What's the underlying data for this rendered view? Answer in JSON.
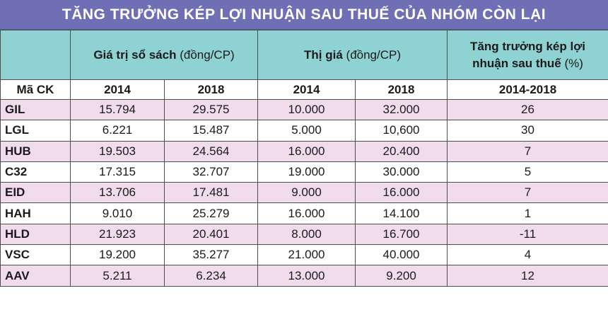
{
  "title": "TĂNG TRƯỞNG KÉP LỢI NHUẬN SAU THUẾ CỦA NHÓM CÒN LẠI",
  "header": {
    "book_value": {
      "label": "Giá trị sổ sách",
      "unit": "(đồng/CP)"
    },
    "market_price": {
      "label": "Thị giá",
      "unit": "(đồng/CP)"
    },
    "cagr": {
      "line1": "Tăng trưởng kép lợi",
      "line2": "nhuận sau thuế",
      "unit": "(%)"
    }
  },
  "subheader": {
    "code": "Mã CK",
    "bv_2014": "2014",
    "bv_2018": "2018",
    "mp_2014": "2014",
    "mp_2018": "2018",
    "period": "2014-2018"
  },
  "chart_data": {
    "type": "table",
    "title": "TĂNG TRƯỞNG KÉP LỢI NHUẬN SAU THUẾ CỦA NHÓM CÒN LẠI",
    "columns": [
      "Mã CK",
      "Giá trị sổ sách 2014",
      "Giá trị sổ sách 2018",
      "Thị giá 2014",
      "Thị giá 2018",
      "Tăng trưởng kép lợi nhuận sau thuế 2014-2018 (%)"
    ],
    "rows": [
      [
        "GIL",
        "15.794",
        "29.575",
        "10.000",
        "32.000",
        "26"
      ],
      [
        "LGL",
        "6.221",
        "15.487",
        "5.000",
        "10,600",
        "30"
      ],
      [
        "HUB",
        "19.503",
        "24.564",
        "16.000",
        "20.400",
        "7"
      ],
      [
        "C32",
        "17.315",
        "32.707",
        "19.000",
        "30.000",
        "5"
      ],
      [
        "EID",
        "13.706",
        "17.481",
        "9.000",
        "16.000",
        "7"
      ],
      [
        "HAH",
        "9.010",
        "25.279",
        "16.000",
        "14.100",
        "1"
      ],
      [
        "HLD",
        "21.923",
        "20.401",
        "8.000",
        "16.700",
        "-11"
      ],
      [
        "VSC",
        "19.200",
        "35.277",
        "21.000",
        "40.000",
        "4"
      ],
      [
        "AAV",
        "5.211",
        "6.234",
        "13.000",
        "9.200",
        "12"
      ]
    ]
  },
  "colors": {
    "title_bg": "#6f6fb5",
    "header_bg": "#8ed2d4",
    "stripe": "#f0dcea"
  }
}
